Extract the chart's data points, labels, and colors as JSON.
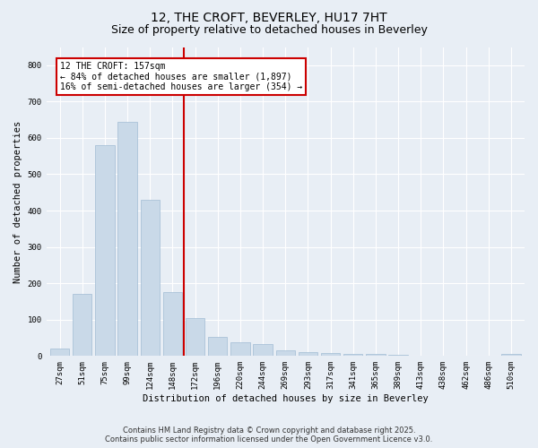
{
  "title": "12, THE CROFT, BEVERLEY, HU17 7HT",
  "subtitle": "Size of property relative to detached houses in Beverley",
  "xlabel": "Distribution of detached houses by size in Beverley",
  "ylabel": "Number of detached properties",
  "bar_labels": [
    "27sqm",
    "51sqm",
    "75sqm",
    "99sqm",
    "124sqm",
    "148sqm",
    "172sqm",
    "196sqm",
    "220sqm",
    "244sqm",
    "269sqm",
    "293sqm",
    "317sqm",
    "341sqm",
    "365sqm",
    "389sqm",
    "413sqm",
    "438sqm",
    "462sqm",
    "486sqm",
    "510sqm"
  ],
  "bar_values": [
    20,
    170,
    580,
    645,
    430,
    175,
    105,
    52,
    38,
    32,
    15,
    10,
    7,
    5,
    5,
    3,
    2,
    1,
    0,
    0,
    5
  ],
  "bar_color": "#c9d9e8",
  "bar_edgecolor": "#a0bcd4",
  "vline_x_index": 5,
  "vline_color": "#cc0000",
  "annotation_text": "12 THE CROFT: 157sqm\n← 84% of detached houses are smaller (1,897)\n16% of semi-detached houses are larger (354) →",
  "annotation_box_color": "#cc0000",
  "ylim": [
    0,
    850
  ],
  "yticks": [
    0,
    100,
    200,
    300,
    400,
    500,
    600,
    700,
    800
  ],
  "footer_line1": "Contains HM Land Registry data © Crown copyright and database right 2025.",
  "footer_line2": "Contains public sector information licensed under the Open Government Licence v3.0.",
  "bg_color": "#e8eef5",
  "plot_bg_color": "#e8eef5",
  "title_fontsize": 10,
  "subtitle_fontsize": 9,
  "axis_label_fontsize": 7.5,
  "tick_fontsize": 6.5,
  "annotation_fontsize": 7,
  "footer_fontsize": 6
}
